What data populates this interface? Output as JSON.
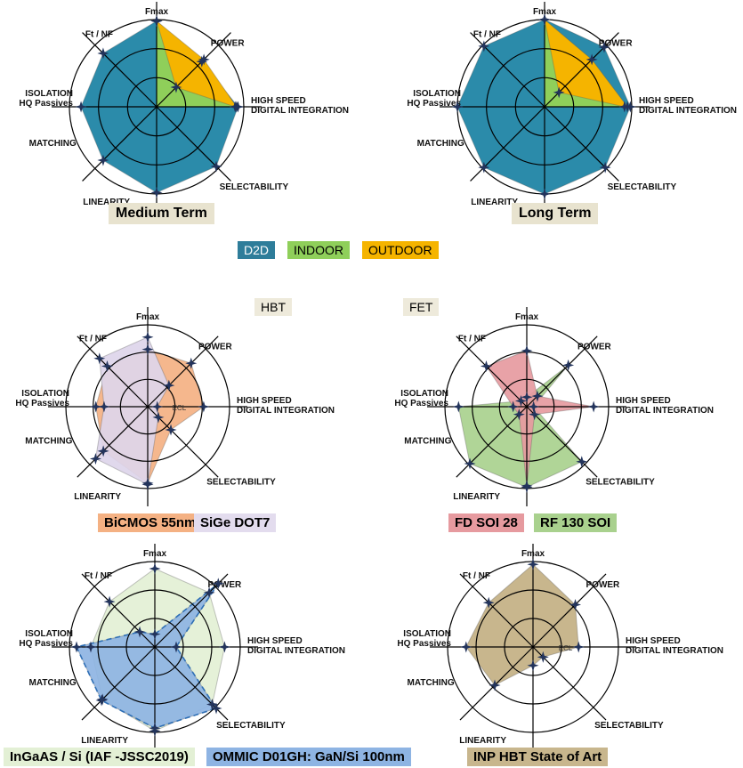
{
  "axis_labels": [
    "Fmax",
    "POWER",
    "HIGH SPEED\nDIGITAL INTEGRATION",
    "SELECTABILITY",
    "LINEARITY",
    "MATCHING",
    "ISOLATION\nHQ Passives",
    "Ft / NF"
  ],
  "legend": {
    "items": [
      {
        "label": "D2D",
        "color": "#2e7d9a"
      },
      {
        "label": "INDOOR",
        "color": "#8fcf5a"
      },
      {
        "label": "OUTDOOR",
        "color": "#f5b400"
      }
    ]
  },
  "section_labels": {
    "hbt": "HBT",
    "fet": "FET"
  },
  "chart_data": [
    {
      "type": "radar",
      "title": "Medium Term",
      "rmax": 3,
      "grid": "rings",
      "series": [
        {
          "name": "D2D",
          "color": "#2b8baa",
          "values": [
            2.95,
            2.2,
            2.8,
            2.9,
            2.95,
            2.6,
            2.6,
            2.6
          ]
        },
        {
          "name": "OUTDOOR",
          "color": "#f5b400",
          "values": [
            2.95,
            2.3,
            2.75,
            0,
            0,
            0,
            0,
            0
          ]
        },
        {
          "name": "INDOOR",
          "color": "#8fcf5a",
          "values": [
            2.95,
            0.95,
            2.7,
            0,
            0,
            0,
            0,
            0
          ]
        }
      ]
    },
    {
      "type": "radar",
      "title": "Long Term",
      "rmax": 3,
      "grid": "rings",
      "series": [
        {
          "name": "D2D",
          "color": "#2b8baa",
          "values": [
            3,
            2.9,
            2.95,
            2.95,
            3,
            2.95,
            3,
            2.95
          ]
        },
        {
          "name": "OUTDOOR",
          "color": "#f5b400",
          "values": [
            3,
            2.3,
            2.85,
            0,
            0,
            0,
            0,
            0
          ]
        },
        {
          "name": "INDOOR",
          "color": "#8fcf5a",
          "values": [
            3,
            0.7,
            2.75,
            0,
            0,
            0,
            0,
            0
          ]
        }
      ]
    },
    {
      "type": "radar",
      "title": "",
      "rmax": 3,
      "grid": "rings",
      "annotation": "ECL",
      "series": [
        {
          "name": "BiCMOS 55nm",
          "color": "#f4b183",
          "values": [
            2.1,
            2.25,
            2.05,
            1.2,
            2.8,
            2.3,
            1.9,
            2.1
          ]
        },
        {
          "name": "SiGe DOT7",
          "color": "#ddd5ea",
          "values": [
            2.55,
            1.1,
            0.35,
            0.55,
            2.85,
            2.7,
            1.6,
            2.5
          ]
        }
      ]
    },
    {
      "type": "radar",
      "title": "",
      "rmax": 3,
      "grid": "rings",
      "series": [
        {
          "name": "RF 130 SOI",
          "color": "#a9d18e",
          "values": [
            0.35,
            2.15,
            0.25,
            2.85,
            2.95,
            2.95,
            2.5,
            0.3
          ]
        },
        {
          "name": "FD SOI 28",
          "color": "#e69a9f",
          "values": [
            2.05,
            0.55,
            2.45,
            0.4,
            2.9,
            0.4,
            0.5,
            2.1
          ]
        }
      ]
    },
    {
      "type": "radar",
      "title": "",
      "rmax": 3,
      "grid": "rings",
      "series": [
        {
          "name": "InGaAS / Si (IAF -JSSC2019)",
          "color": "#e3f0d5",
          "values": [
            2.75,
            2.7,
            2.45,
            2.85,
            2.95,
            2.6,
            2.25,
            2.25
          ]
        },
        {
          "name": "OMMIC D01GH: GaN/Si 100nm",
          "color": "#8eb4e3",
          "values": [
            0.45,
            3.15,
            0.75,
            3.05,
            2.85,
            2.65,
            2.75,
            0.75
          ]
        }
      ]
    },
    {
      "type": "radar",
      "title": "",
      "rmax": 3,
      "grid": "rings",
      "annotation": "ECL",
      "series": [
        {
          "name": "INP HBT State of Art",
          "color": "#c8b68d",
          "values": [
            2.9,
            2.1,
            1.6,
            0.5,
            0.65,
            1.9,
            2.35,
            2.2
          ]
        }
      ]
    }
  ]
}
